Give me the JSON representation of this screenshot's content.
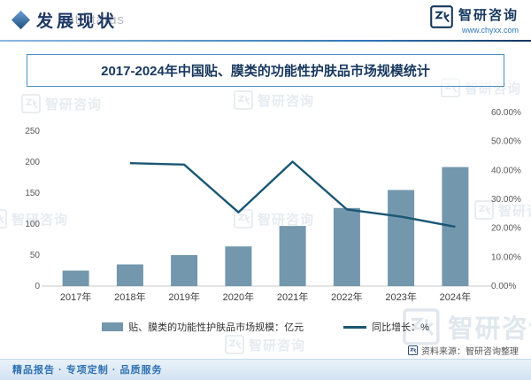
{
  "header": {
    "section_title": "发展现状",
    "watermark_en": "ent status",
    "brand": {
      "name": "智研咨询",
      "url": "www.chyxx.com"
    }
  },
  "chart_data": {
    "type": "bar+line",
    "title": "2017-2024年中国贴、膜类的功能性护肤品市场规模统计",
    "categories": [
      "2017年",
      "2018年",
      "2019年",
      "2020年",
      "2021年",
      "2022年",
      "2023年",
      "2024年"
    ],
    "series": [
      {
        "name": "贴、膜类的功能性护肤品市场规模：亿元",
        "type": "bar",
        "axis": "left",
        "color": "#7397ad",
        "values": [
          25,
          35,
          50,
          64,
          97,
          126,
          155,
          192
        ]
      },
      {
        "name": "同比增长：%",
        "type": "line",
        "axis": "right",
        "color": "#1b5674",
        "values": [
          null,
          42.5,
          42,
          25.5,
          43,
          26.5,
          24,
          20.5
        ]
      }
    ],
    "left_axis": {
      "min": 0,
      "max": 250,
      "ticks": [
        "0",
        "50",
        "100",
        "150",
        "200",
        "250"
      ]
    },
    "right_axis": {
      "min": 0,
      "max": 60,
      "ticks": [
        "0.00%",
        "10.00%",
        "20.00%",
        "30.00%",
        "40.00%",
        "50.00%",
        "60.00%"
      ]
    },
    "legend_position": "bottom",
    "grid": false
  },
  "source": {
    "label": "资料来源：智研咨询整理"
  },
  "footer": {
    "text": "精品报告 · 专项定制 · 品质服务"
  },
  "watermark": {
    "brand": "智研咨询"
  },
  "colors": {
    "accent": "#2e75b6",
    "title_text": "#17375e",
    "bar": "#7397ad",
    "line": "#1b5674"
  }
}
